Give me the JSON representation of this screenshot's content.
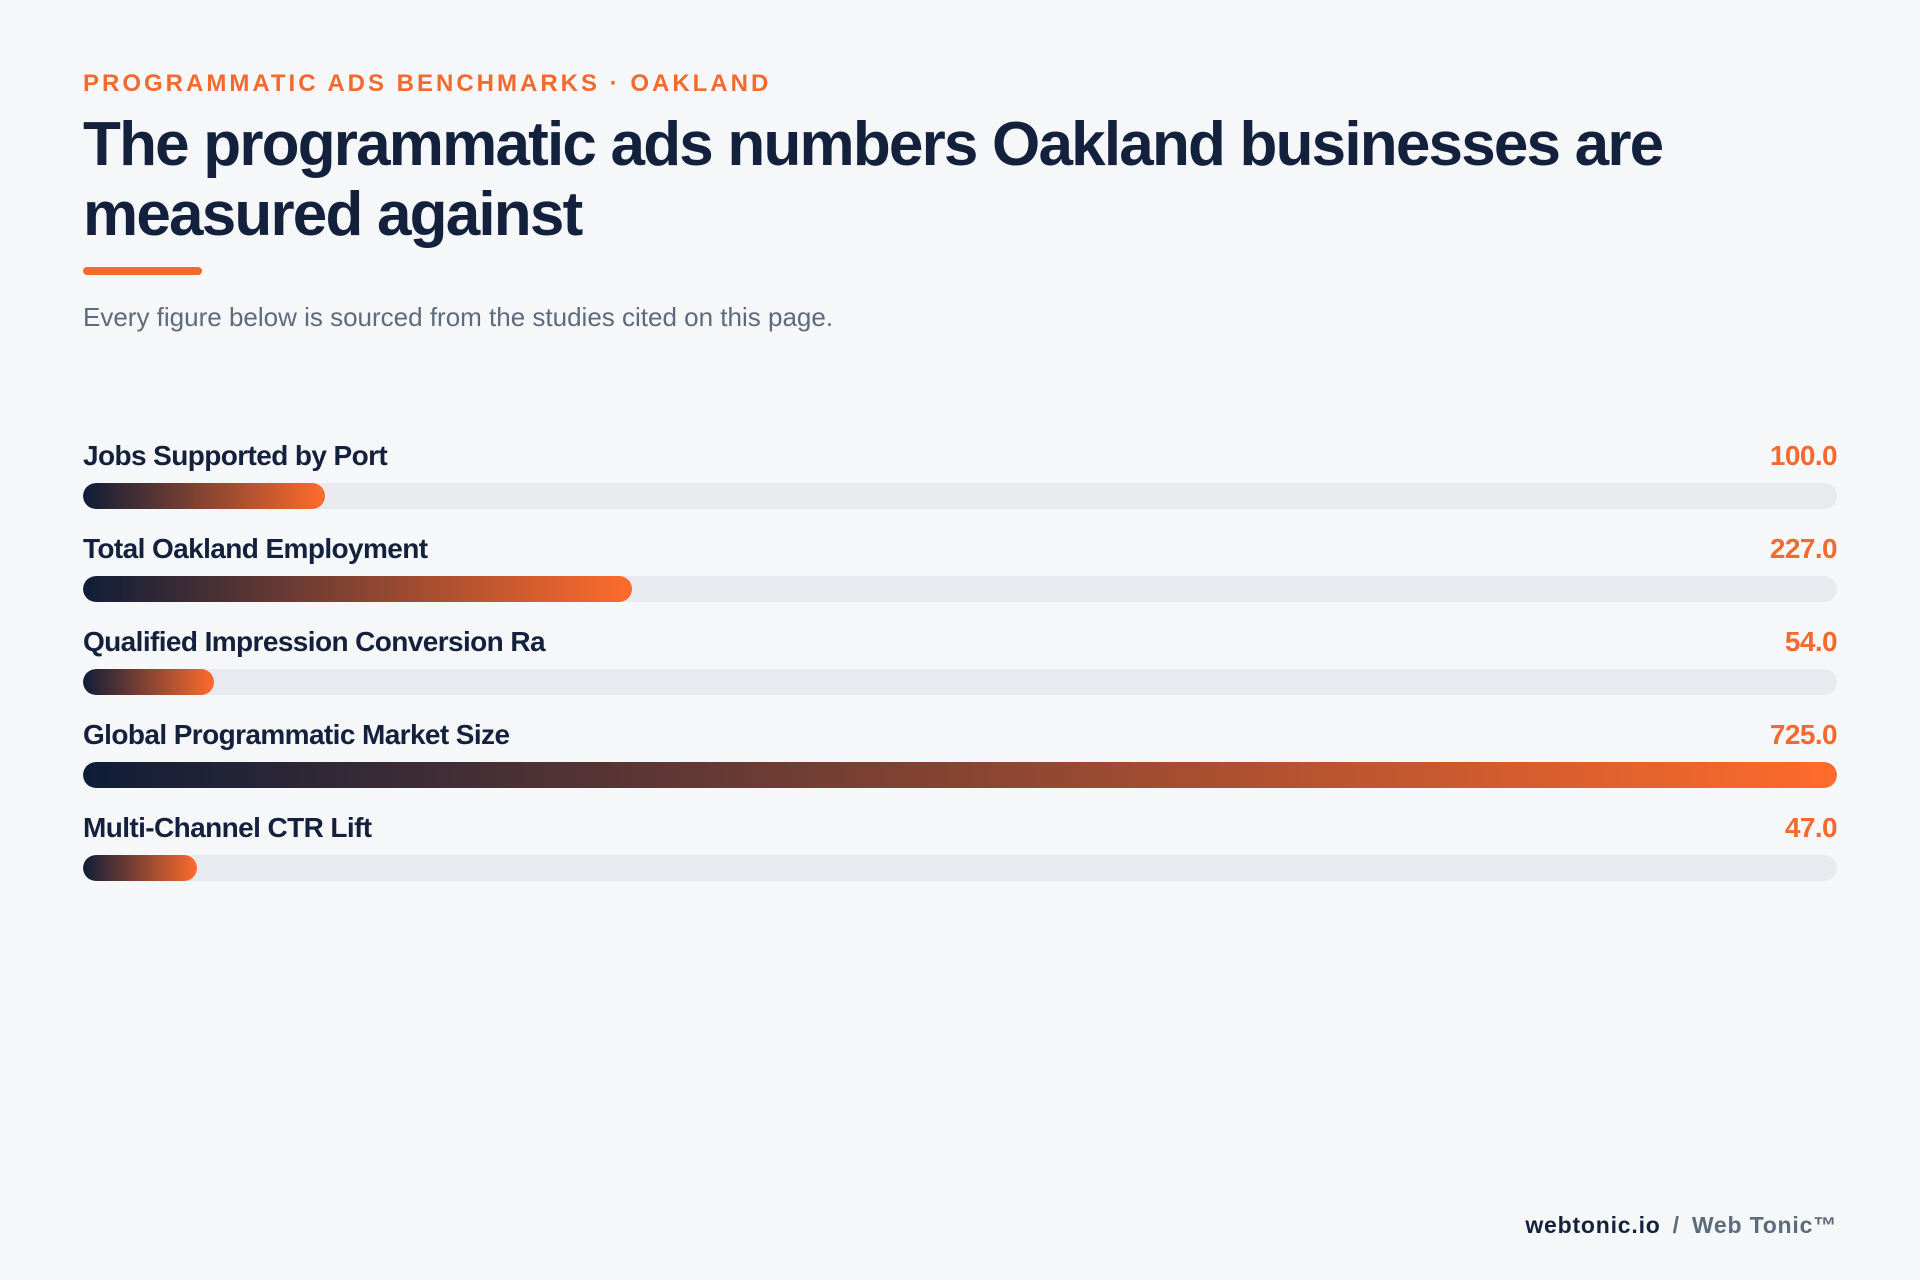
{
  "header": {
    "eyebrow": "PROGRAMMATIC ADS BENCHMARKS · OAKLAND",
    "title": "The programmatic ads numbers Oakland businesses are measured against",
    "subtitle": "Every figure below is sourced from the studies cited on this page."
  },
  "footer": {
    "site": "webtonic.io",
    "separator": "/",
    "brand": "Web Tonic™"
  },
  "colors": {
    "accent": "#f26a2e",
    "navy": "#14213d",
    "track": "#e8eaf0",
    "gradient_start": "#0f1d38",
    "gradient_end": "#ff6b2c"
  },
  "chart_data": {
    "type": "bar",
    "orientation": "horizontal",
    "categories": [
      "Jobs Supported by Port",
      "Total Oakland Employment",
      "Qualified Impression Conversion Ra",
      "Global Programmatic Market Size",
      "Multi-Channel CTR Lift"
    ],
    "values": [
      100.0,
      227.0,
      54.0,
      725.0,
      47.0
    ],
    "value_labels": [
      "100.0",
      "227.0",
      "54.0",
      "725.0",
      "47.0"
    ],
    "xlim": [
      0,
      725
    ],
    "grid": false,
    "legend": "none"
  }
}
